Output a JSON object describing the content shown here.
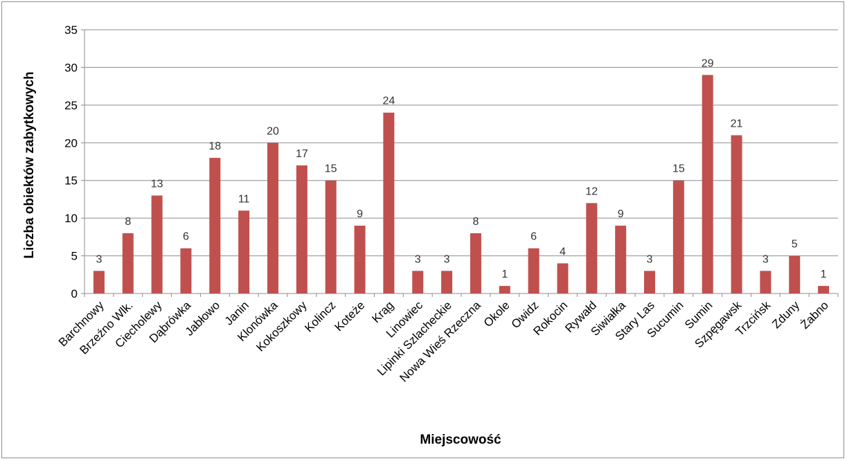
{
  "chart_data": {
    "type": "bar",
    "title": "",
    "xlabel": "Miejscowość",
    "ylabel": "Liczba obiektów zabytkowych",
    "ylim": [
      0,
      35
    ],
    "yticks": [
      0,
      5,
      10,
      15,
      20,
      25,
      30,
      35
    ],
    "grid": true,
    "legend": "none",
    "bar_color": "#c0504d",
    "categories": [
      "Barchnowy",
      "Brzeźno Wlk.",
      "Ciecholewy",
      "Dąbrówka",
      "Jabłowo",
      "Janin",
      "Klonówka",
      "Kokoszkowy",
      "Kolincz",
      "Koteże",
      "Krąg",
      "Linowiec",
      "Lipinki Szlacheckie",
      "Nowa Wieś Rzeczna",
      "Okole",
      "Owidz",
      "Rokocin",
      "Rywałd",
      "Siwiałka",
      "Stary Las",
      "Sucumin",
      "Sumin",
      "Szpęgawsk",
      "Trzcińsk",
      "Zduny",
      "Żabno"
    ],
    "values": [
      3,
      8,
      13,
      6,
      18,
      11,
      20,
      17,
      15,
      9,
      24,
      3,
      3,
      8,
      1,
      6,
      4,
      12,
      9,
      3,
      15,
      29,
      21,
      3,
      5,
      1
    ]
  }
}
